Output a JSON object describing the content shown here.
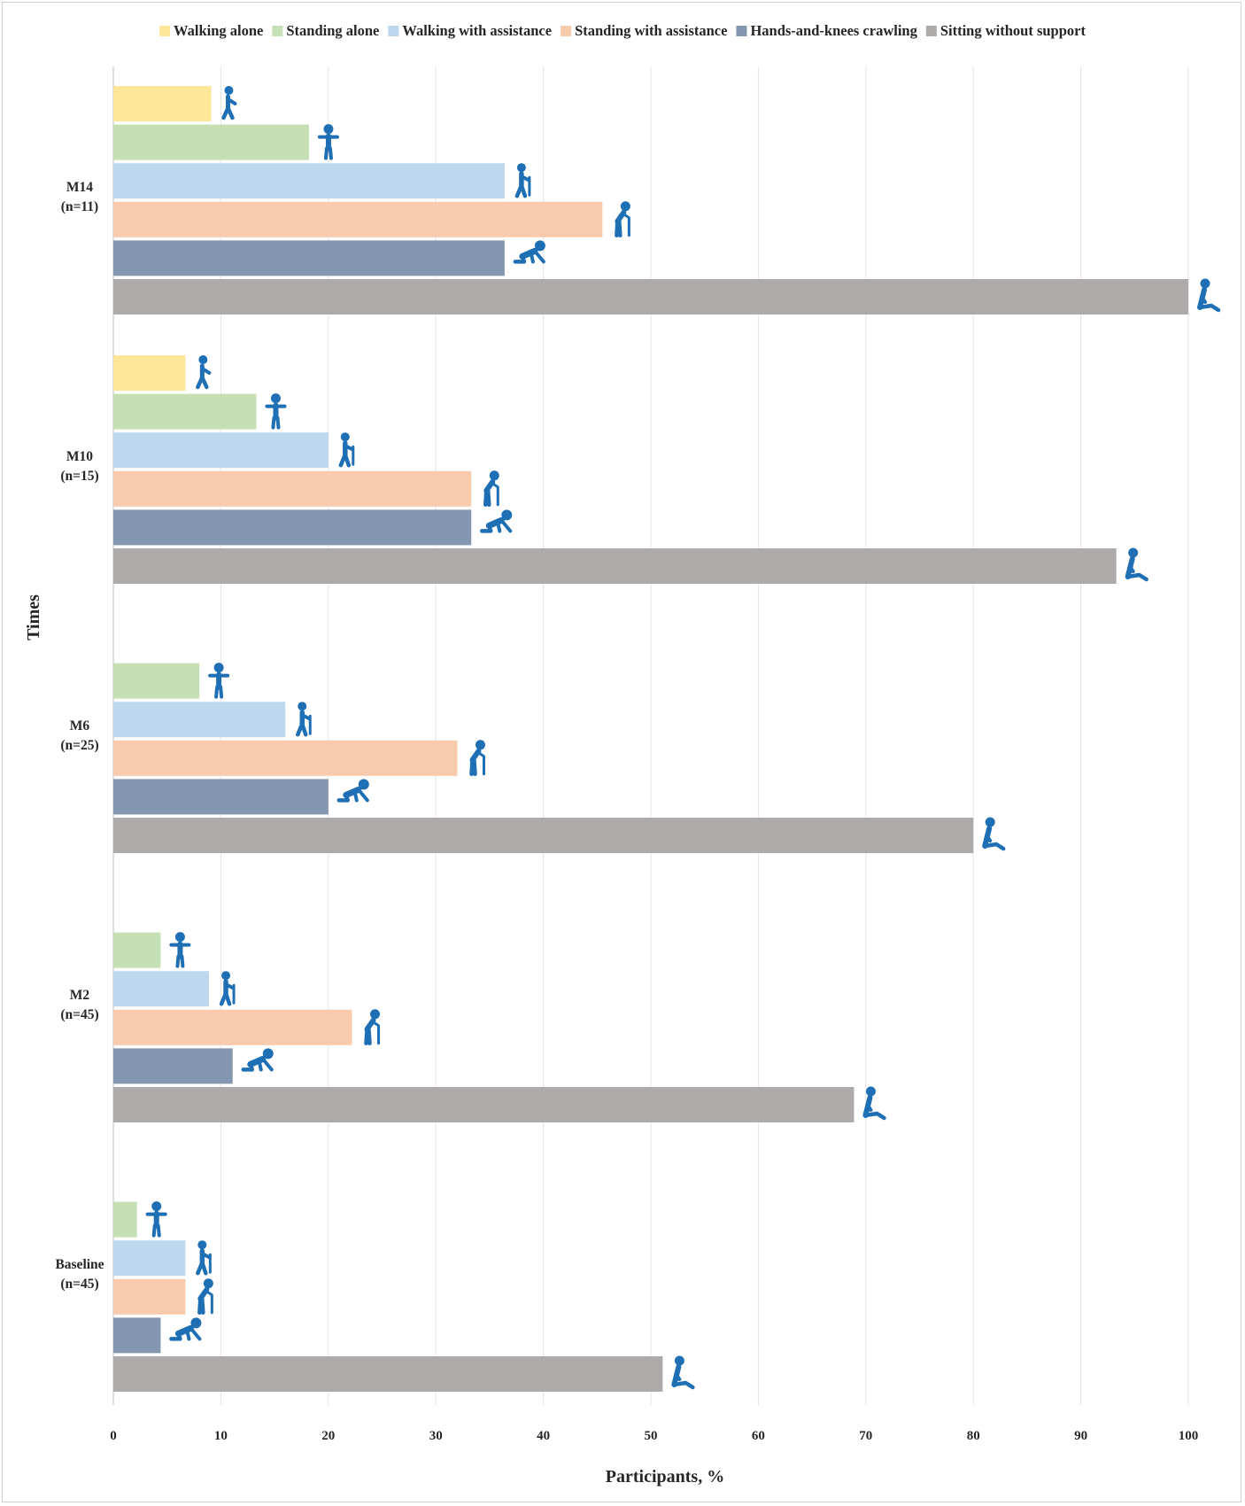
{
  "chart_data": {
    "type": "bar",
    "orientation": "horizontal",
    "title": "",
    "xlabel": "Participants, %",
    "ylabel": "Times",
    "xlim": [
      0,
      100
    ],
    "xticks": [
      "0",
      "10",
      "20",
      "30",
      "40",
      "50",
      "60",
      "70",
      "80",
      "90",
      "100"
    ],
    "grid": "vertical",
    "legend_position": "top",
    "categories": [
      {
        "name": "M14",
        "n": "(n=11)"
      },
      {
        "name": "M10",
        "n": "(n=15)"
      },
      {
        "name": "M6",
        "n": "(n=25)"
      },
      {
        "name": "M2",
        "n": "(n=45)"
      },
      {
        "name": "Baseline",
        "n": "(n=45)"
      }
    ],
    "series": [
      {
        "name": "Walking alone",
        "color": "#FFE699",
        "icon": "walking-figure-icon",
        "values": [
          9.1,
          6.7,
          0,
          0,
          0
        ]
      },
      {
        "name": "Standing alone",
        "color": "#C5E0B4",
        "icon": "standing-figure-icon",
        "values": [
          18.2,
          13.3,
          8.0,
          4.4,
          2.2
        ]
      },
      {
        "name": "Walking with assistance",
        "color": "#BDD7EE",
        "icon": "walking-cane-figure-icon",
        "values": [
          36.4,
          20.0,
          16.0,
          8.9,
          6.7
        ]
      },
      {
        "name": "Standing with assistance",
        "color": "#F8CBAD",
        "icon": "standing-support-figure-icon",
        "values": [
          45.5,
          33.3,
          32.0,
          22.2,
          6.7
        ]
      },
      {
        "name": "Hands-and-knees crawling",
        "color": "#8497B0",
        "icon": "crawling-figure-icon",
        "values": [
          36.4,
          33.3,
          20.0,
          11.1,
          4.4
        ]
      },
      {
        "name": "Sitting without support",
        "color": "#AEAAAA",
        "icon": "sitting-figure-icon",
        "values": [
          100,
          93.3,
          80.0,
          68.9,
          51.1
        ]
      }
    ],
    "icon_color": "#1F6FB5"
  }
}
